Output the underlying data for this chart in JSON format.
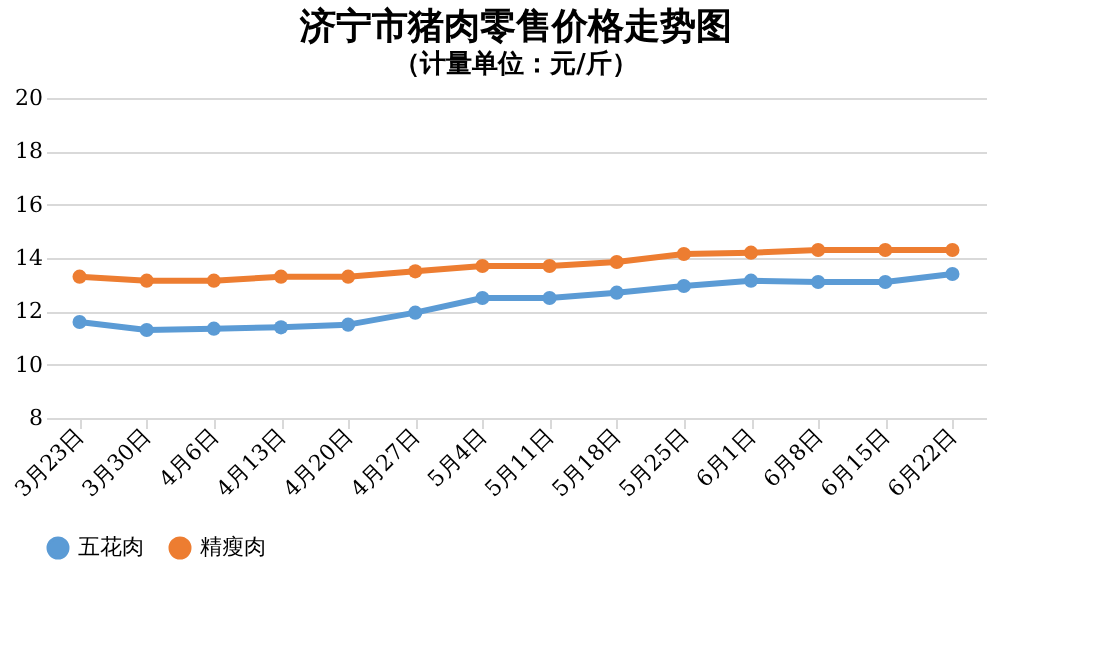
{
  "chart_data": {
    "type": "line",
    "title": "济宁市猪肉零售价格走势图",
    "subtitle": "（计量单位：元/斤）",
    "categories": [
      "3月23日",
      "3月30日",
      "4月6日",
      "4月13日",
      "4月20日",
      "4月27日",
      "5月4日",
      "5月11日",
      "5月18日",
      "5月25日",
      "6月1日",
      "6月8日",
      "6月15日",
      "6月22日"
    ],
    "series": [
      {
        "name": "五花肉",
        "color": "#5b9bd5",
        "values": [
          11.6,
          11.3,
          11.35,
          11.4,
          11.5,
          11.95,
          12.5,
          12.5,
          12.7,
          12.95,
          13.15,
          13.1,
          13.1,
          13.4
        ]
      },
      {
        "name": "精瘦肉",
        "color": "#ed7d31",
        "values": [
          13.3,
          13.15,
          13.15,
          13.3,
          13.3,
          13.5,
          13.7,
          13.7,
          13.85,
          14.15,
          14.2,
          14.3,
          14.3,
          14.3
        ]
      }
    ],
    "ylim": [
      8,
      20
    ],
    "yticks": [
      8,
      10,
      12,
      14,
      16,
      18,
      20
    ],
    "grid": "y",
    "legend": "bottom",
    "marker": "circle",
    "line_style": "solid"
  }
}
